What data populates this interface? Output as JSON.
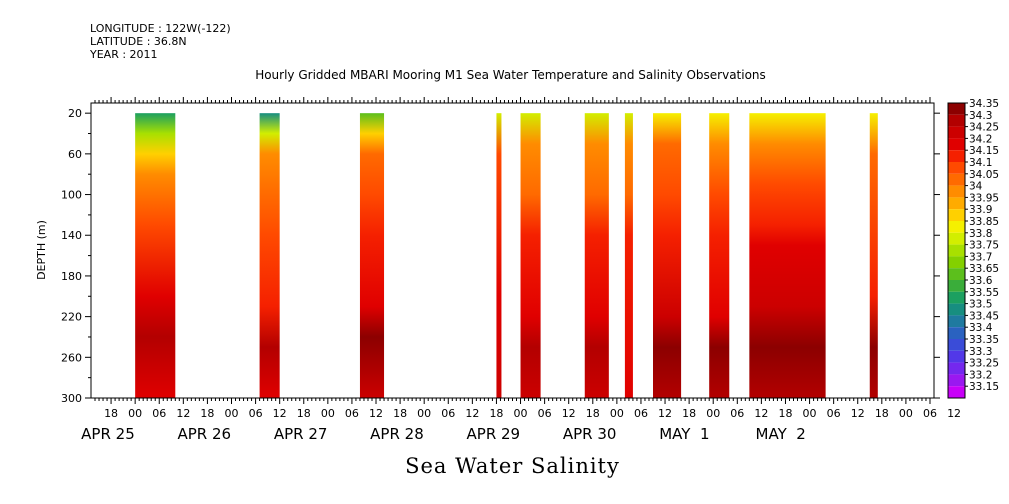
{
  "header": {
    "longitude": "LONGITUDE : 122W(-122)",
    "latitude": "LATITUDE : 36.8N",
    "year": "YEAR : 2011",
    "title": "Hourly Gridded MBARI Mooring M1 Sea Water Temperature and Salinity Observations"
  },
  "footer": {
    "variable_title": "Sea Water Salinity"
  },
  "chart_data": {
    "type": "heatmap",
    "title": "Hourly Gridded MBARI Mooring M1 Sea Water Temperature and Salinity Observations",
    "xlabel": "",
    "ylabel": "DEPTH (m)",
    "variable": "Sea Water Salinity",
    "y_axis": {
      "range": [
        10,
        300
      ],
      "inverted": true,
      "ticks": [
        20,
        60,
        100,
        140,
        180,
        220,
        260,
        300
      ]
    },
    "x_axis": {
      "range_hours": [
        -11,
        199
      ],
      "hour_ticks": [
        "18",
        "00",
        "06",
        "12",
        "18",
        "00",
        "06",
        "12",
        "18",
        "00",
        "06",
        "12",
        "18",
        "00",
        "06",
        "12",
        "18",
        "00",
        "06",
        "12",
        "18",
        "00",
        "06",
        "12",
        "18",
        "00",
        "06",
        "12",
        "18",
        "00",
        "06",
        "12",
        "18",
        "00",
        "06",
        "12"
      ],
      "date_labels": [
        "APR 25",
        "APR 26",
        "APR 27",
        "APR 28",
        "APR 29",
        "APR 30",
        "MAY  1",
        "MAY  2"
      ]
    },
    "colorbar": {
      "levels": [
        "34.35",
        "34.3",
        "34.25",
        "34.2",
        "34.15",
        "34.1",
        "34.05",
        "34",
        "33.95",
        "33.9",
        "33.85",
        "33.8",
        "33.75",
        "33.7",
        "33.65",
        "33.6",
        "33.55",
        "33.5",
        "33.45",
        "33.4",
        "33.35",
        "33.3",
        "33.25",
        "33.2",
        "33.15"
      ],
      "colors": [
        "#8c0000",
        "#b30000",
        "#cc0000",
        "#e00000",
        "#f52000",
        "#ff4a00",
        "#ff6a00",
        "#ff8c00",
        "#ffab00",
        "#ffd000",
        "#f5f000",
        "#d2ee00",
        "#a8e000",
        "#84d000",
        "#5cbf1c",
        "#3aad3a",
        "#1ca060",
        "#178e80",
        "#1f7aa0",
        "#2a62c0",
        "#3a4cd8",
        "#5238e8",
        "#7428ee",
        "#9a18f0",
        "#c800f8"
      ]
    },
    "observation_blocks": [
      {
        "start": "APR 25 00",
        "end": "APR 25 10",
        "surface_salinity": 33.55,
        "layers": [
          [
            20,
            33.55
          ],
          [
            40,
            33.75
          ],
          [
            60,
            33.9
          ],
          [
            80,
            34.0
          ],
          [
            130,
            34.1
          ],
          [
            200,
            34.2
          ],
          [
            240,
            34.3
          ],
          [
            300,
            34.2
          ]
        ]
      },
      {
        "start": "APR 26 07",
        "end": "APR 26 12",
        "surface_salinity": 33.5,
        "layers": [
          [
            20,
            33.5
          ],
          [
            40,
            33.8
          ],
          [
            60,
            34.0
          ],
          [
            100,
            34.05
          ],
          [
            140,
            34.1
          ],
          [
            210,
            34.15
          ],
          [
            250,
            34.3
          ],
          [
            300,
            34.2
          ]
        ]
      },
      {
        "start": "APR 27 08",
        "end": "APR 27 14",
        "surface_salinity": 33.65,
        "layers": [
          [
            20,
            33.65
          ],
          [
            40,
            33.9
          ],
          [
            60,
            34.05
          ],
          [
            100,
            34.1
          ],
          [
            140,
            34.15
          ],
          [
            210,
            34.2
          ],
          [
            240,
            34.35
          ],
          [
            300,
            34.25
          ]
        ]
      },
      {
        "start": "APR 28 18",
        "end": "APR 28 19",
        "surface_salinity": 33.8,
        "layers": [
          [
            20,
            33.8
          ],
          [
            60,
            34.1
          ],
          [
            200,
            34.2
          ],
          [
            300,
            34.25
          ]
        ]
      },
      {
        "start": "APR 29 00",
        "end": "APR 29 05",
        "surface_salinity": 33.8,
        "layers": [
          [
            20,
            33.8
          ],
          [
            50,
            34.0
          ],
          [
            100,
            34.05
          ],
          [
            140,
            34.15
          ],
          [
            220,
            34.2
          ],
          [
            250,
            34.3
          ],
          [
            300,
            34.25
          ]
        ]
      },
      {
        "start": "APR 29 16",
        "end": "APR 29 22",
        "surface_salinity": 33.8,
        "layers": [
          [
            20,
            33.8
          ],
          [
            50,
            34.0
          ],
          [
            100,
            34.05
          ],
          [
            140,
            34.15
          ],
          [
            220,
            34.2
          ],
          [
            250,
            34.3
          ],
          [
            300,
            34.25
          ]
        ]
      },
      {
        "start": "APR 30 02",
        "end": "APR 30 04",
        "surface_salinity": 33.8,
        "layers": [
          [
            20,
            33.8
          ],
          [
            50,
            34.0
          ],
          [
            100,
            34.05
          ],
          [
            140,
            34.15
          ],
          [
            300,
            34.2
          ]
        ]
      },
      {
        "start": "APR 30 09",
        "end": "APR 30 16",
        "surface_salinity": 33.85,
        "layers": [
          [
            20,
            33.85
          ],
          [
            50,
            34.05
          ],
          [
            100,
            34.1
          ],
          [
            140,
            34.15
          ],
          [
            220,
            34.25
          ],
          [
            250,
            34.35
          ],
          [
            300,
            34.3
          ]
        ]
      },
      {
        "start": "APR 30 23",
        "end": "MAY 1 04",
        "surface_salinity": 33.85,
        "layers": [
          [
            20,
            33.85
          ],
          [
            50,
            34.0
          ],
          [
            100,
            34.1
          ],
          [
            140,
            34.15
          ],
          [
            220,
            34.2
          ],
          [
            250,
            34.35
          ],
          [
            300,
            34.3
          ]
        ]
      },
      {
        "start": "MAY 1 09",
        "end": "MAY 2 04",
        "surface_salinity": 33.85,
        "layers": [
          [
            20,
            33.85
          ],
          [
            50,
            34.0
          ],
          [
            90,
            34.1
          ],
          [
            130,
            34.15
          ],
          [
            150,
            34.2
          ],
          [
            210,
            34.25
          ],
          [
            250,
            34.35
          ],
          [
            300,
            34.3
          ]
        ]
      },
      {
        "start": "MAY 2 15",
        "end": "MAY 2 17",
        "surface_salinity": 33.85,
        "layers": [
          [
            20,
            33.85
          ],
          [
            60,
            34.05
          ],
          [
            200,
            34.15
          ],
          [
            250,
            34.35
          ],
          [
            300,
            34.3
          ]
        ]
      }
    ]
  }
}
